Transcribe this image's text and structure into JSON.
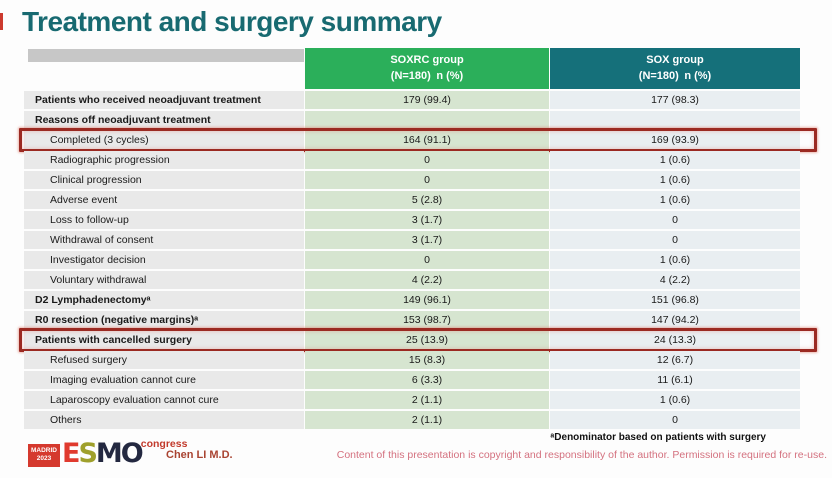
{
  "slide": {
    "title": "Treatment and surgery summary",
    "presenter": "Chen LI M.D.",
    "footnote": "ᵃDenominator based on patients with surgery",
    "copyright": "Content of this presentation is copyright and responsibility of the author. Permission is required for re-use."
  },
  "logo": {
    "city": "MADRID\n2023",
    "letters": {
      "e": "E",
      "s": "S",
      "m": "M",
      "o": "O"
    },
    "suffix": "congress"
  },
  "colors": {
    "title": "#186a71",
    "header_soxrc_bg": "#2baf5a",
    "header_sox_bg": "#15707a",
    "label_col_bg": "#e9e9e9",
    "soxrc_col_bg": "#d6e5d0",
    "sox_col_bg": "#e9eef1",
    "highlight_border": "#9b2a22",
    "copyright_text": "#d4717f"
  },
  "table": {
    "header": {
      "soxrc": {
        "line1": "SOXRC group",
        "line2": "(N=180) n (%)"
      },
      "sox": {
        "line1": "SOX group",
        "line2": "(N=180) n (%)"
      }
    },
    "rows": [
      {
        "label": "Patients who received neoadjuvant treatment",
        "soxrc": "179 (99.4)",
        "sox": "177 (98.3)"
      },
      {
        "label": "Reasons off neoadjuvant treatment",
        "soxrc": "",
        "sox": ""
      },
      {
        "label": "Completed (3 cycles)",
        "soxrc": "164 (91.1)",
        "sox": "169 (93.9)"
      },
      {
        "label": "Radiographic progression",
        "soxrc": "0",
        "sox": "1 (0.6)"
      },
      {
        "label": "Clinical progression",
        "soxrc": "0",
        "sox": "1 (0.6)"
      },
      {
        "label": "Adverse event",
        "soxrc": "5 (2.8)",
        "sox": "1 (0.6)"
      },
      {
        "label": "Loss to follow-up",
        "soxrc": "3 (1.7)",
        "sox": "0"
      },
      {
        "label": "Withdrawal of consent",
        "soxrc": "3 (1.7)",
        "sox": "0"
      },
      {
        "label": "Investigator decision",
        "soxrc": "0",
        "sox": "1 (0.6)"
      },
      {
        "label": "Voluntary withdrawal",
        "soxrc": "4 (2.2)",
        "sox": "4 (2.2)"
      },
      {
        "label": "D2 Lymphadenectomyᵃ",
        "soxrc": "149 (96.1)",
        "sox": "151 (96.8)"
      },
      {
        "label": "R0 resection (negative margins)ᵃ",
        "soxrc": "153 (98.7)",
        "sox": "147 (94.2)"
      },
      {
        "label": "Patients with cancelled surgery",
        "soxrc": "25 (13.9)",
        "sox": "24 (13.3)"
      },
      {
        "label": "Refused surgery",
        "soxrc": "15 (8.3)",
        "sox": "12 (6.7)"
      },
      {
        "label": "Imaging evaluation cannot cure",
        "soxrc": "6 (3.3)",
        "sox": "11 (6.1)"
      },
      {
        "label": "Laparoscopy evaluation cannot cure",
        "soxrc": "2 (1.1)",
        "sox": "1 (0.6)"
      },
      {
        "label": "Others",
        "soxrc": "2 (1.1)",
        "sox": "0"
      }
    ]
  }
}
